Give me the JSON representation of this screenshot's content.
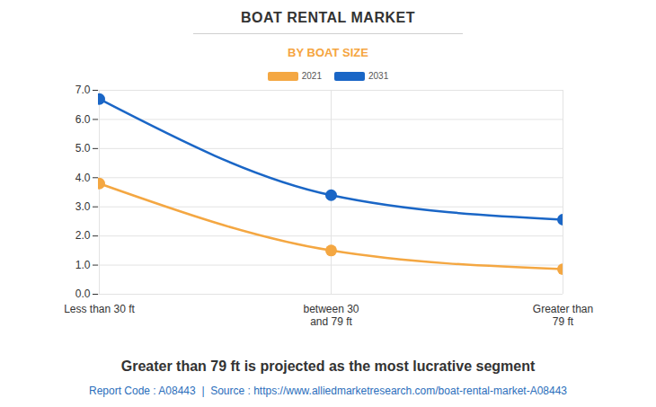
{
  "chart_data": {
    "type": "line",
    "title": "BOAT RENTAL MARKET",
    "subtitle": "BY BOAT SIZE",
    "caption": "Greater than 79 ft is projected as the most lucrative segment",
    "source": "Report Code : A08443  |  Source : https://www.alliedmarketresearch.com/boat-rental-market-A08443",
    "categories": [
      "Less than 30 ft",
      "between 30\nand 79 ft",
      "Greater than\n79 ft"
    ],
    "series": [
      {
        "name": "2021",
        "color": "#f4a742",
        "values": [
          3.8,
          1.5,
          0.86
        ]
      },
      {
        "name": "2031",
        "color": "#1a66c6",
        "values": [
          6.7,
          3.4,
          2.56
        ]
      }
    ],
    "ylim": [
      0,
      7
    ],
    "yticks": [
      0,
      1,
      2,
      3,
      4,
      5,
      6,
      7
    ],
    "grid": true,
    "legend": "top",
    "tick_labels": "x"
  }
}
